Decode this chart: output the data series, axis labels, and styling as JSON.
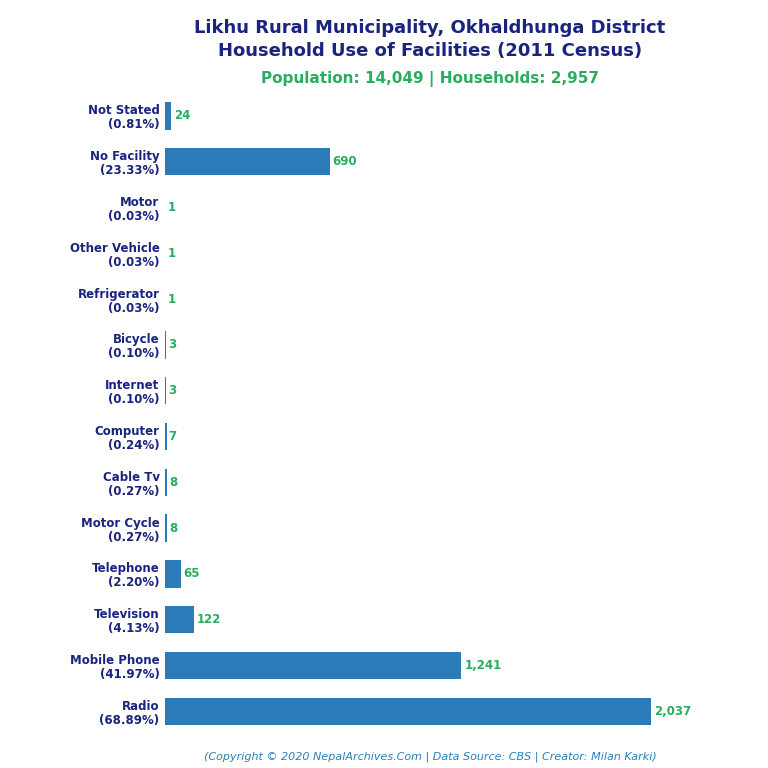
{
  "title_line1": "Likhu Rural Municipality, Okhaldhunga District",
  "title_line2": "Household Use of Facilities (2011 Census)",
  "subtitle": "Population: 14,049 | Households: 2,957",
  "footer": "(Copyright © 2020 NepalArchives.Com | Data Source: CBS | Creator: Milan Karki)",
  "categories": [
    "Not Stated\n(0.81%)",
    "No Facility\n(23.33%)",
    "Motor\n(0.03%)",
    "Other Vehicle\n(0.03%)",
    "Refrigerator\n(0.03%)",
    "Bicycle\n(0.10%)",
    "Internet\n(0.10%)",
    "Computer\n(0.24%)",
    "Cable Tv\n(0.27%)",
    "Motor Cycle\n(0.27%)",
    "Telephone\n(2.20%)",
    "Television\n(4.13%)",
    "Mobile Phone\n(41.97%)",
    "Radio\n(68.89%)"
  ],
  "values": [
    24,
    690,
    1,
    1,
    1,
    3,
    3,
    7,
    8,
    8,
    65,
    122,
    1241,
    2037
  ],
  "bar_color": "#2b7bba",
  "value_color": "#27AE60",
  "title_color": "#1a237e",
  "subtitle_color": "#27AE60",
  "footer_color": "#2980B9",
  "background_color": "#ffffff",
  "xlim": [
    0,
    2300
  ],
  "title_fontsize": 13,
  "subtitle_fontsize": 11,
  "label_fontsize": 8.5,
  "value_fontsize": 8.5,
  "footer_fontsize": 8
}
